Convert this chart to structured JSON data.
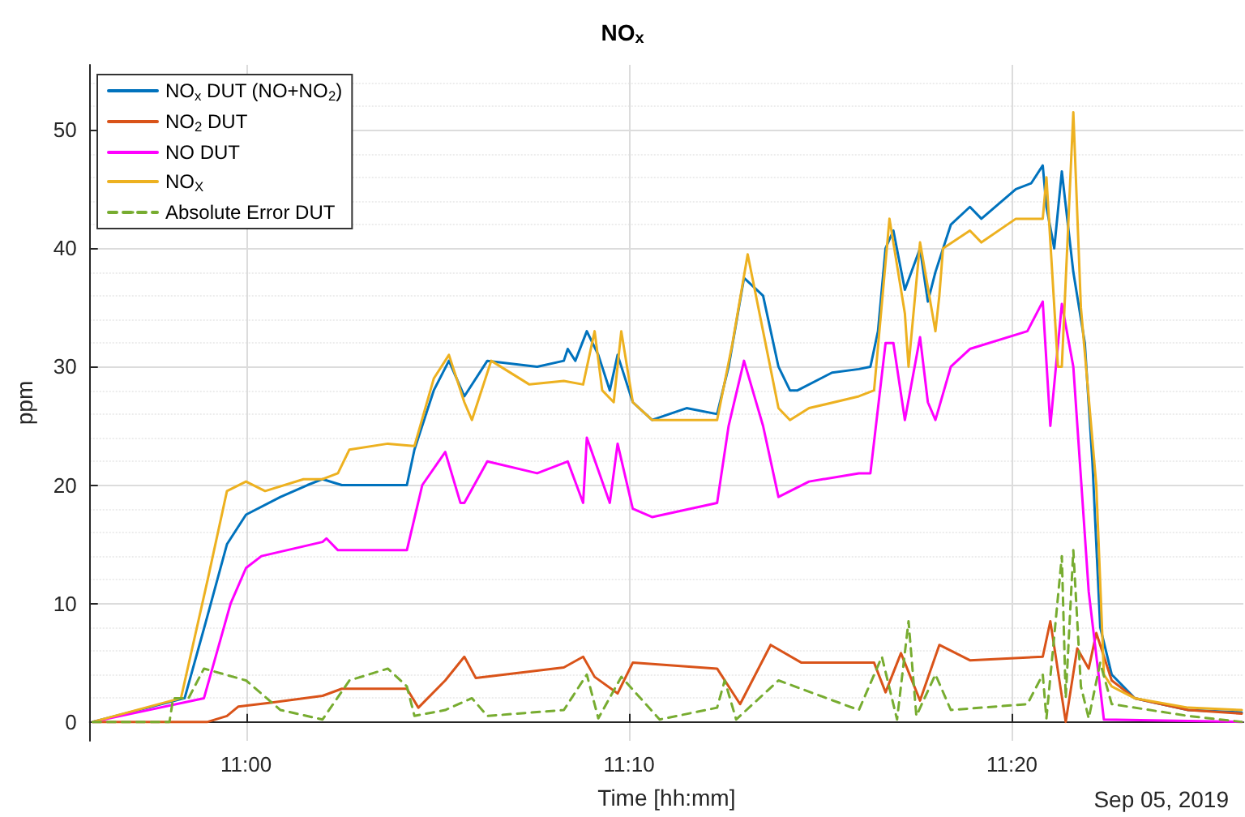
{
  "chart_data": {
    "type": "line",
    "title": "NO$_{x}$",
    "xlabel": "Time [hh:mm]",
    "ylabel": "ppm",
    "xlim": [
      10.932,
      11.434
    ],
    "xticks": [
      {
        "value": 11,
        "label": "11:00"
      },
      {
        "value": 11.1667,
        "label": "11:10"
      },
      {
        "value": 11.3333,
        "label": "11:20"
      }
    ],
    "ylim": [
      -1.6,
      55.5
    ],
    "yticks": [
      0,
      10,
      20,
      30,
      40,
      50
    ],
    "grid": true,
    "legend": "top left",
    "marker": "none",
    "annotations": [
      "Sep 05, 2019"
    ],
    "series": [
      {
        "name": "NO$_{x}$ DUT (NO+NO$_{2}$)",
        "color": "#0072bd",
        "x": [
          10.9333,
          10.9733,
          10.9833,
          10.9917,
          11.0,
          11.015,
          11.0267,
          11.0333,
          11.0417,
          11.07,
          11.0733,
          11.0817,
          11.0883,
          11.095,
          11.105,
          11.1267,
          11.1383,
          11.14,
          11.1433,
          11.1483,
          11.1533,
          11.1583,
          11.1617,
          11.1683,
          11.1767,
          11.1917,
          11.205,
          11.21,
          11.2167,
          11.225,
          11.2317,
          11.2367,
          11.24,
          11.255,
          11.2667,
          11.2717,
          11.275,
          11.2783,
          11.2817,
          11.2867,
          11.2933,
          11.2967,
          11.3,
          11.3067,
          11.315,
          11.32,
          11.335,
          11.3417,
          11.3467,
          11.3483,
          11.3517,
          11.355,
          11.36,
          11.365,
          11.3683,
          11.3717,
          11.3767,
          11.3867,
          11.41,
          11.4333
        ],
        "values": [
          0,
          2,
          9,
          15,
          17.5,
          19,
          20,
          20.5,
          20,
          20,
          23,
          28,
          30.5,
          27.5,
          30.5,
          30,
          30.5,
          31.5,
          30.5,
          33,
          31,
          28,
          31,
          27,
          25.5,
          26.5,
          26,
          30,
          37.5,
          36,
          30,
          28,
          28,
          29.5,
          29.8,
          30,
          33,
          40,
          41.5,
          36.5,
          40,
          35.5,
          38,
          42,
          43.5,
          42.5,
          45,
          45.5,
          47,
          43.5,
          40,
          46.5,
          38,
          32,
          22,
          8,
          4,
          2,
          1,
          0.8
        ]
      },
      {
        "name": "NO$_{2}$ DUT",
        "color": "#d95319",
        "x": [
          10.9333,
          10.9833,
          10.9917,
          10.9967,
          11.01,
          11.0333,
          11.0417,
          11.07,
          11.075,
          11.0867,
          11.095,
          11.1,
          11.1383,
          11.1467,
          11.1517,
          11.1617,
          11.1683,
          11.205,
          11.215,
          11.2283,
          11.2417,
          11.2667,
          11.2733,
          11.2783,
          11.285,
          11.2933,
          11.3017,
          11.315,
          11.3467,
          11.35,
          11.3567,
          11.3617,
          11.3667,
          11.37,
          11.3767,
          11.3867,
          11.41,
          11.4333
        ],
        "values": [
          0,
          0,
          0.5,
          1.3,
          1.6,
          2.2,
          2.8,
          2.8,
          1.2,
          3.5,
          5.5,
          3.7,
          4.6,
          5.5,
          3.8,
          2.4,
          5,
          4.5,
          1.5,
          6.5,
          5,
          5,
          5,
          2.5,
          5.8,
          1.8,
          6.5,
          5.2,
          5.5,
          8.5,
          0,
          6.2,
          4.5,
          7.5,
          3.5,
          2,
          1,
          0.7
        ]
      },
      {
        "name": "NO DUT",
        "color": "#ff00ff",
        "x": [
          10.9333,
          10.9817,
          10.9933,
          11.0,
          11.0067,
          11.0333,
          11.035,
          11.04,
          11.07,
          11.0767,
          11.0867,
          11.0933,
          11.095,
          11.105,
          11.1267,
          11.14,
          11.1467,
          11.1483,
          11.1583,
          11.1617,
          11.1683,
          11.1767,
          11.205,
          11.21,
          11.2167,
          11.225,
          11.2317,
          11.245,
          11.2667,
          11.2717,
          11.2783,
          11.2817,
          11.2867,
          11.2933,
          11.2967,
          11.3,
          11.3067,
          11.315,
          11.34,
          11.3467,
          11.35,
          11.355,
          11.36,
          11.3667,
          11.3733,
          11.4333
        ],
        "values": [
          0,
          2,
          10,
          13,
          14,
          15.2,
          15.5,
          14.5,
          14.5,
          20,
          22.8,
          18.5,
          18.5,
          22,
          21,
          22,
          18.5,
          24,
          18.5,
          23.5,
          18,
          17.3,
          18.5,
          25,
          30.5,
          25,
          19,
          20.3,
          21,
          21,
          32,
          32,
          25.5,
          32.5,
          27,
          25.5,
          30,
          31.5,
          33,
          35.5,
          25,
          35.3,
          30,
          11,
          0.2,
          0
        ]
      },
      {
        "name": "NO$_{X}$",
        "color": "#edb120",
        "x": [
          10.9333,
          10.9717,
          10.9833,
          10.9917,
          11.0,
          11.0083,
          11.025,
          11.0333,
          11.04,
          11.045,
          11.0617,
          11.0733,
          11.0817,
          11.0883,
          11.095,
          11.0983,
          11.1067,
          11.1233,
          11.1383,
          11.1467,
          11.1517,
          11.155,
          11.16,
          11.1633,
          11.1683,
          11.1767,
          11.205,
          11.2117,
          11.2183,
          11.225,
          11.2317,
          11.2367,
          11.245,
          11.2667,
          11.2733,
          11.28,
          11.2867,
          11.2883,
          11.2933,
          11.3,
          11.3017,
          11.3033,
          11.315,
          11.32,
          11.335,
          11.3467,
          11.3483,
          11.3533,
          11.355,
          11.36,
          11.3633,
          11.37,
          11.3733,
          11.3767,
          11.3867,
          11.41,
          11.4333
        ],
        "values": [
          0,
          2,
          12,
          19.5,
          20.3,
          19.5,
          20.5,
          20.5,
          21,
          23,
          23.5,
          23.3,
          29,
          31,
          27,
          25.5,
          30.5,
          28.5,
          28.8,
          28.5,
          33,
          28,
          27,
          33,
          27,
          25.5,
          25.5,
          32,
          39.5,
          33,
          26.5,
          25.5,
          26.5,
          27.5,
          28,
          42.5,
          34.5,
          30,
          40.5,
          33,
          36,
          40,
          41.5,
          40.5,
          42.5,
          42.5,
          46,
          30,
          30,
          51.5,
          35,
          20,
          4,
          3,
          2,
          1.2,
          1
        ]
      },
      {
        "name": "Absolute Error DUT",
        "color": "#77ac30",
        "line_style": "dashed",
        "x": [
          10.9333,
          10.9667,
          10.9683,
          10.975,
          10.9817,
          11.0,
          11.015,
          11.0333,
          11.045,
          11.0617,
          11.07,
          11.0733,
          11.0867,
          11.0983,
          11.105,
          11.1383,
          11.1483,
          11.1533,
          11.1633,
          11.18,
          11.205,
          11.2083,
          11.2133,
          11.2317,
          11.2667,
          11.2767,
          11.2833,
          11.2883,
          11.2917,
          11.3,
          11.3067,
          11.34,
          11.3467,
          11.3483,
          11.355,
          11.3567,
          11.36,
          11.3633,
          11.3667,
          11.3717,
          11.3767,
          11.41,
          11.4333
        ],
        "values": [
          0,
          0,
          2,
          2,
          4.5,
          3.5,
          1,
          0.2,
          3.5,
          4.5,
          3,
          0.5,
          1,
          2,
          0.5,
          1,
          4,
          0.3,
          3.8,
          0.2,
          1.2,
          3.5,
          0.2,
          3.5,
          1,
          5.5,
          0.2,
          8.5,
          0.5,
          4,
          1,
          1.5,
          4,
          0.3,
          14,
          2,
          14.5,
          3,
          0.3,
          5,
          1.5,
          0.5,
          0
        ]
      }
    ]
  }
}
